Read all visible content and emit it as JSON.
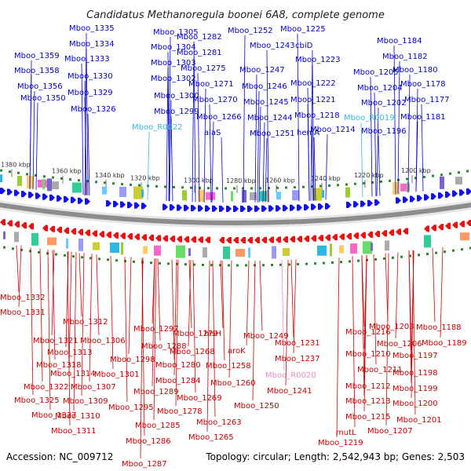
{
  "title": "Candidatus Methanoregula boonei 6A8, complete genome",
  "footer": {
    "accession": "Accession: NC_009712",
    "summary": "Topology: circular; Length: 2,542,943 bp; Genes: 2,503"
  },
  "colors": {
    "forward_label": "#0000cc",
    "reverse_label": "#cc0000",
    "rna_label": "#33bbdd",
    "rna_label_reverse": "#ee88cc",
    "forward_arrow": "#1010ee",
    "reverse_arrow": "#ee1010",
    "backbone": "#8c8c8c",
    "ticks_line": "#2a8a2a"
  },
  "ticks": [
    {
      "label": "1380 kbp",
      "pos": 1380
    },
    {
      "label": "1360 kbp",
      "pos": 1360
    },
    {
      "label": "1340 kbp",
      "pos": 1340
    },
    {
      "label": "1320 kbp",
      "pos": 1320
    },
    {
      "label": "1300 kbp",
      "pos": 1300
    },
    {
      "label": "1280 kbp",
      "pos": 1280
    },
    {
      "label": "1260 kbp",
      "pos": 1260
    },
    {
      "label": "1240 kbp",
      "pos": 1240
    },
    {
      "label": "1220 kbp",
      "pos": 1220
    },
    {
      "label": "1200 kbp",
      "pos": 1200
    }
  ],
  "top_labels": [
    {
      "text": "Mboo_1335",
      "kind": "fwd"
    },
    {
      "text": "Mboo_1334",
      "kind": "fwd"
    },
    {
      "text": "Mboo_1359",
      "kind": "fwd"
    },
    {
      "text": "Mboo_1333",
      "kind": "fwd"
    },
    {
      "text": "Mboo_1358",
      "kind": "fwd"
    },
    {
      "text": "Mboo_1330",
      "kind": "fwd"
    },
    {
      "text": "Mboo_1356",
      "kind": "fwd"
    },
    {
      "text": "Mboo_1329",
      "kind": "fwd"
    },
    {
      "text": "Mboo_1350",
      "kind": "fwd"
    },
    {
      "text": "Mboo_1326",
      "kind": "fwd"
    },
    {
      "text": "Mboo_1305",
      "kind": "fwd"
    },
    {
      "text": "Mboo_1304",
      "kind": "fwd"
    },
    {
      "text": "Mboo_1303",
      "kind": "fwd"
    },
    {
      "text": "Mboo_1302",
      "kind": "fwd"
    },
    {
      "text": "Mboo_1300",
      "kind": "fwd"
    },
    {
      "text": "Mboo_1299",
      "kind": "fwd"
    },
    {
      "text": "Mboo_R0022",
      "kind": "rna"
    },
    {
      "text": "Mboo_1282",
      "kind": "fwd"
    },
    {
      "text": "Mboo_1281",
      "kind": "fwd"
    },
    {
      "text": "Mboo_1275",
      "kind": "fwd"
    },
    {
      "text": "Mboo_1271",
      "kind": "fwd"
    },
    {
      "text": "Mboo_1270",
      "kind": "fwd"
    },
    {
      "text": "Mboo_1266",
      "kind": "fwd"
    },
    {
      "text": "alaS",
      "kind": "fwd"
    },
    {
      "text": "Mboo_1252",
      "kind": "fwd"
    },
    {
      "text": "Mboo_1243",
      "kind": "fwd"
    },
    {
      "text": "cbiD",
      "kind": "fwd"
    },
    {
      "text": "Mboo_1225",
      "kind": "fwd"
    },
    {
      "text": "Mboo_1247",
      "kind": "fwd"
    },
    {
      "text": "Mboo_1223",
      "kind": "fwd"
    },
    {
      "text": "Mboo_1246",
      "kind": "fwd"
    },
    {
      "text": "Mboo_1222",
      "kind": "fwd"
    },
    {
      "text": "Mboo_1245",
      "kind": "fwd"
    },
    {
      "text": "Mboo_1221",
      "kind": "fwd"
    },
    {
      "text": "Mboo_1244",
      "kind": "fwd"
    },
    {
      "text": "Mboo_1218",
      "kind": "fwd"
    },
    {
      "text": "Mboo_1251",
      "kind": "fwd"
    },
    {
      "text": "hemA",
      "kind": "fwd"
    },
    {
      "text": "Mboo_1214",
      "kind": "fwd"
    },
    {
      "text": "Mboo_1184",
      "kind": "fwd"
    },
    {
      "text": "Mboo_1182",
      "kind": "fwd"
    },
    {
      "text": "Mboo_1205",
      "kind": "fwd"
    },
    {
      "text": "Mboo_1180",
      "kind": "fwd"
    },
    {
      "text": "Mboo_1204",
      "kind": "fwd"
    },
    {
      "text": "Mboo_1178",
      "kind": "fwd"
    },
    {
      "text": "Mboo_1177",
      "kind": "fwd"
    },
    {
      "text": "Mboo_1202",
      "kind": "fwd"
    },
    {
      "text": "Mboo_R0019",
      "kind": "rna"
    },
    {
      "text": "Mboo_1181",
      "kind": "fwd"
    },
    {
      "text": "Mboo_1196",
      "kind": "fwd"
    }
  ],
  "bottom_labels": [
    {
      "text": "Mboo_1332",
      "kind": "rev"
    },
    {
      "text": "Mboo_1331",
      "kind": "rev"
    },
    {
      "text": "Mboo_1312",
      "kind": "rev"
    },
    {
      "text": "Mboo_1321",
      "kind": "rev"
    },
    {
      "text": "Mboo_1306",
      "kind": "rev"
    },
    {
      "text": "Mboo_1313",
      "kind": "rev"
    },
    {
      "text": "Mboo_1318",
      "kind": "rev"
    },
    {
      "text": "Mboo_1314",
      "kind": "rev"
    },
    {
      "text": "Mboo_1322",
      "kind": "rev"
    },
    {
      "text": "Mboo_1307",
      "kind": "rev"
    },
    {
      "text": "Mboo_1325",
      "kind": "rev"
    },
    {
      "text": "Mboo_1309",
      "kind": "rev"
    },
    {
      "text": "Mboo_1327",
      "kind": "rev"
    },
    {
      "text": "Mboo_1310",
      "kind": "rev"
    },
    {
      "text": "Mboo_1311",
      "kind": "rev"
    },
    {
      "text": "Mboo_1297",
      "kind": "rev"
    },
    {
      "text": "Mboo_1288",
      "kind": "rev"
    },
    {
      "text": "Mboo_1298",
      "kind": "rev"
    },
    {
      "text": "Mboo_1301",
      "kind": "rev"
    },
    {
      "text": "Mboo_1289",
      "kind": "rev"
    },
    {
      "text": "Mboo_1295",
      "kind": "rev"
    },
    {
      "text": "Mboo_1285",
      "kind": "rev"
    },
    {
      "text": "Mboo_1286",
      "kind": "rev"
    },
    {
      "text": "Mboo_1287",
      "kind": "rev"
    },
    {
      "text": "Mboo_1279",
      "kind": "rev"
    },
    {
      "text": "Mboo_1268",
      "kind": "rev"
    },
    {
      "text": "Mboo_1280",
      "kind": "rev"
    },
    {
      "text": "Mboo_1284",
      "kind": "rev"
    },
    {
      "text": "Mboo_1269",
      "kind": "rev"
    },
    {
      "text": "Mboo_1278",
      "kind": "rev"
    },
    {
      "text": "Mboo_1263",
      "kind": "rev"
    },
    {
      "text": "Mboo_1265",
      "kind": "rev"
    },
    {
      "text": "hisH",
      "kind": "rev"
    },
    {
      "text": "aroK",
      "kind": "rev"
    },
    {
      "text": "Mboo_1258",
      "kind": "rev"
    },
    {
      "text": "Mboo_1260",
      "kind": "rev"
    },
    {
      "text": "Mboo_1249",
      "kind": "rev"
    },
    {
      "text": "Mboo_1250",
      "kind": "rev"
    },
    {
      "text": "Mboo_1231",
      "kind": "rev"
    },
    {
      "text": "Mboo_1237",
      "kind": "rev"
    },
    {
      "text": "Mboo_R0020",
      "kind": "rna_rev"
    },
    {
      "text": "Mboo_1241",
      "kind": "rev"
    },
    {
      "text": "Mboo_1216",
      "kind": "rev"
    },
    {
      "text": "Mboo_1210",
      "kind": "rev"
    },
    {
      "text": "Mboo_1211",
      "kind": "rev"
    },
    {
      "text": "Mboo_1212",
      "kind": "rev"
    },
    {
      "text": "Mboo_1213",
      "kind": "rev"
    },
    {
      "text": "Mboo_1215",
      "kind": "rev"
    },
    {
      "text": "mutL",
      "kind": "rev"
    },
    {
      "text": "Mboo_1219",
      "kind": "rev"
    },
    {
      "text": "Mboo_1203",
      "kind": "rev"
    },
    {
      "text": "Mboo_1206",
      "kind": "rev"
    },
    {
      "text": "Mboo_1197",
      "kind": "rev"
    },
    {
      "text": "Mboo_1198",
      "kind": "rev"
    },
    {
      "text": "Mboo_1199",
      "kind": "rev"
    },
    {
      "text": "Mboo_1200",
      "kind": "rev"
    },
    {
      "text": "Mboo_1201",
      "kind": "rev"
    },
    {
      "text": "Mboo_1207",
      "kind": "rev"
    },
    {
      "text": "Mboo_1188",
      "kind": "rev"
    },
    {
      "text": "Mboo_1189",
      "kind": "rev"
    }
  ]
}
